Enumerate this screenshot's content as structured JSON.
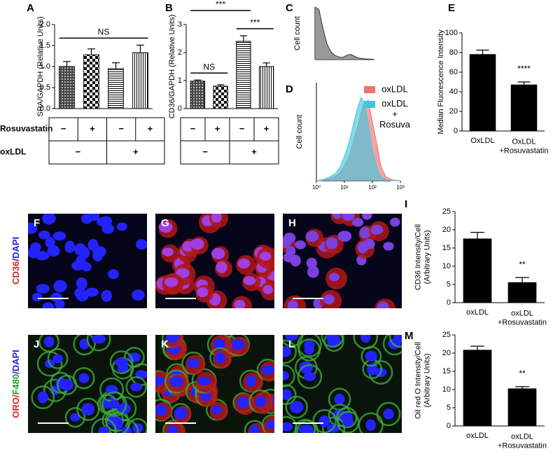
{
  "chart_data": [
    {
      "panel_label": "A",
      "type": "bar",
      "y_label": "SRA/GAPDH (Relative Units)",
      "values": [
        1.0,
        1.28,
        0.95,
        1.33
      ],
      "errors": [
        0.12,
        0.14,
        0.14,
        0.18
      ],
      "patterns": [
        "crosshatch",
        "checker",
        "horizontal",
        "vertical"
      ],
      "ylim": [
        0,
        2
      ],
      "yticks": [
        {
          "value": 0,
          "label": "0.0"
        },
        {
          "value": 0.5,
          "label": "0.5"
        },
        {
          "value": 1,
          "label": "1.0"
        },
        {
          "value": 1.5,
          "label": "1.5"
        },
        {
          "value": 2,
          "label": "2.0"
        }
      ],
      "annotations": [
        {
          "text": "NS",
          "bars": [
            0,
            3
          ]
        }
      ],
      "treatment_table": {
        "rows": [
          {
            "label": "Rosuvastatin",
            "cells": [
              "−",
              "+",
              "−",
              "+"
            ]
          },
          {
            "label": "oxLDL",
            "cells": [
              "−",
              "+"
            ]
          }
        ]
      }
    },
    {
      "panel_label": "B",
      "type": "bar",
      "y_label": "CD36/GAPDH (Relative Units)",
      "values": [
        0.98,
        0.8,
        2.4,
        1.5
      ],
      "errors": [
        0.04,
        0.05,
        0.2,
        0.13
      ],
      "patterns": [
        "crosshatch",
        "checker",
        "horizontal",
        "vertical"
      ],
      "ylim": [
        0,
        3
      ],
      "yticks": [
        0,
        1,
        2,
        3
      ],
      "annotations": [
        {
          "text": "NS",
          "bars": [
            0,
            1
          ]
        },
        {
          "text": "***",
          "bars": [
            2,
            3
          ]
        },
        {
          "text": "***",
          "bars": [
            0,
            2
          ]
        }
      ],
      "treatment_table": {
        "rows": [
          {
            "cells": [
              "−",
              "+",
              "−",
              "+"
            ]
          },
          {
            "cells": [
              "−",
              "+"
            ]
          }
        ]
      }
    },
    {
      "panel_label": "C",
      "type": "area",
      "y_label": "Cell count",
      "color": "#808080",
      "values": [
        100,
        95,
        60,
        30,
        15,
        8,
        5,
        4,
        8,
        10,
        6,
        3,
        2,
        1,
        1,
        0
      ],
      "ylim": [
        0,
        100
      ]
    },
    {
      "panel_label": "D",
      "type": "area",
      "y_label": "Cell count",
      "xscale": "log",
      "x": [
        1,
        1.5,
        2,
        3,
        5,
        7,
        10,
        15,
        20,
        30,
        40,
        50,
        70,
        100,
        150,
        200,
        300,
        500,
        1000
      ],
      "xlim": [
        1,
        1000
      ],
      "xticks": [
        {
          "value": 1,
          "label": "10⁰"
        },
        {
          "value": 10,
          "label": "10¹"
        },
        {
          "value": 100,
          "label": "10²"
        },
        {
          "value": 1000,
          "label": "10³"
        }
      ],
      "ylim": [
        0,
        100
      ],
      "legend": "top-right",
      "series": [
        {
          "name": "oxLDL",
          "color": "#f07070",
          "values": [
            0,
            0,
            1,
            2,
            5,
            8,
            15,
            25,
            38,
            55,
            70,
            80,
            82,
            60,
            35,
            15,
            4,
            1,
            0
          ]
        },
        {
          "name": "oxLDL\n+\nRosuva",
          "color": "#40c8e0",
          "values": [
            0,
            1,
            2,
            4,
            8,
            14,
            25,
            40,
            55,
            75,
            85,
            80,
            60,
            30,
            12,
            4,
            1,
            0,
            0
          ]
        }
      ]
    },
    {
      "panel_label": "E",
      "type": "bar",
      "y_label": "Median Fluorescence Intensity",
      "color": "#000000",
      "categories": [
        "OxLDL",
        "OxLDL\n+Rosuvastatin"
      ],
      "values": [
        78,
        47
      ],
      "errors": [
        4.5,
        3
      ],
      "ylim": [
        0,
        100
      ],
      "yticks": [
        0,
        20,
        40,
        60,
        80,
        100
      ],
      "annotations": [
        {
          "text": "****",
          "bars": [
            1,
            1
          ]
        }
      ]
    },
    {
      "panel_label": "I",
      "type": "bar",
      "y_label": "CD36 Intensity/Cell\n(Arbitrary Units)",
      "color": "#000000",
      "categories": [
        "oxLDL",
        "oxLDL\n+Rosuvastatin"
      ],
      "values": [
        17.5,
        5.5
      ],
      "errors": [
        1.8,
        1.4
      ],
      "ylim": [
        0,
        25
      ],
      "yticks": [
        0,
        5,
        10,
        15,
        20,
        25
      ],
      "annotations": [
        {
          "text": "**",
          "bars": [
            1,
            1
          ]
        }
      ]
    },
    {
      "panel_label": "M",
      "type": "bar",
      "y_label": "Oil red O Intensity/Cell\n(Arbitrary Units)",
      "color": "#000000",
      "categories": [
        "oxLDL",
        "oxLDL\n+Rosuvastatin"
      ],
      "values": [
        20.8,
        10.2
      ],
      "errors": [
        1.1,
        0.6
      ],
      "ylim": [
        0,
        25
      ],
      "yticks": [
        0,
        5,
        10,
        15,
        20,
        25
      ],
      "annotations": [
        {
          "text": "**",
          "bars": [
            1,
            1
          ]
        }
      ]
    }
  ],
  "images": [
    {
      "panel_label": "F"
    },
    {
      "panel_label": "G"
    },
    {
      "panel_label": "H"
    },
    {
      "panel_label": "J"
    },
    {
      "panel_label": "K"
    },
    {
      "panel_label": "L"
    }
  ],
  "image_rows": [
    {
      "label_parts": [
        {
          "text": "CD36",
          "color": "#e02020"
        },
        {
          "text": "/DAPI",
          "color": "#2020e0"
        }
      ]
    },
    {
      "label_parts": [
        {
          "text": "ORO/",
          "color": "#e02020"
        },
        {
          "text": "F480",
          "color": "#20a020"
        },
        {
          "text": "/DAPI",
          "color": "#2020e0"
        }
      ]
    }
  ]
}
